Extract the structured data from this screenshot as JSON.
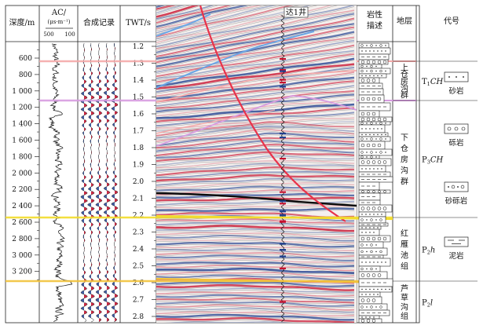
{
  "headers": {
    "depth": "深度/m",
    "ac_line1": "AC/",
    "ac_line2": "(μs·m⁻¹)",
    "ac_scale_left": "500",
    "ac_scale_right": "100",
    "synthetic": "合成记录",
    "twt": "TWT/s",
    "lithology_line1": "岩性",
    "lithology_line2": "描述",
    "stratum": "地层",
    "code": "代号"
  },
  "well_label": "达1井",
  "depth_ticks": [
    "600",
    "800",
    "1 000",
    "1 200",
    "1 400",
    "1 600",
    "1 800",
    "2 000",
    "2 200",
    "2 400",
    "2 600",
    "2 800",
    "3 000",
    "3 200"
  ],
  "twt_ticks": [
    "1.2",
    "1.3",
    "1.4",
    "1.5",
    "1.6",
    "1.7",
    "1.8",
    "1.9",
    "2.0",
    "2.1",
    "2.2",
    "2.3",
    "2.4",
    "2.5",
    "2.6",
    "2.7",
    "2.8"
  ],
  "formations": [
    {
      "name": [
        "上",
        "仓",
        "房",
        "沟",
        "群"
      ],
      "code_main": "T",
      "code_sub": "1",
      "code_italic": "CH"
    },
    {
      "name": [
        "下",
        "仓",
        "房",
        "沟",
        "群"
      ],
      "code_main": "P",
      "code_sub": "3",
      "code_italic": "CH"
    },
    {
      "name": [
        "红",
        "雁",
        "池",
        "组"
      ],
      "code_main": "P",
      "code_sub": "2",
      "code_italic": "h"
    },
    {
      "name": [
        "芦",
        "草",
        "沟",
        "组"
      ],
      "code_main": "P",
      "code_sub": "2",
      "code_italic": "l"
    }
  ],
  "legend": [
    {
      "label": "砂岩",
      "pattern": "sandstone"
    },
    {
      "label": "砾岩",
      "pattern": "conglomerate"
    },
    {
      "label": "砂砾岩",
      "pattern": "gravel-sandstone"
    },
    {
      "label": "泥岩",
      "pattern": "mudstone"
    }
  ],
  "colors": {
    "horizon_top": "#f4a9a9",
    "horizon_upper": "#d79be0",
    "horizon_lower": "#f2dc2a",
    "horizon_base": "#f2c23a",
    "fault": "#e8334a",
    "seismic_red": "#c8102e",
    "seismic_blue": "#1f3f8f",
    "blue_horizon": "#6aa6e6"
  }
}
